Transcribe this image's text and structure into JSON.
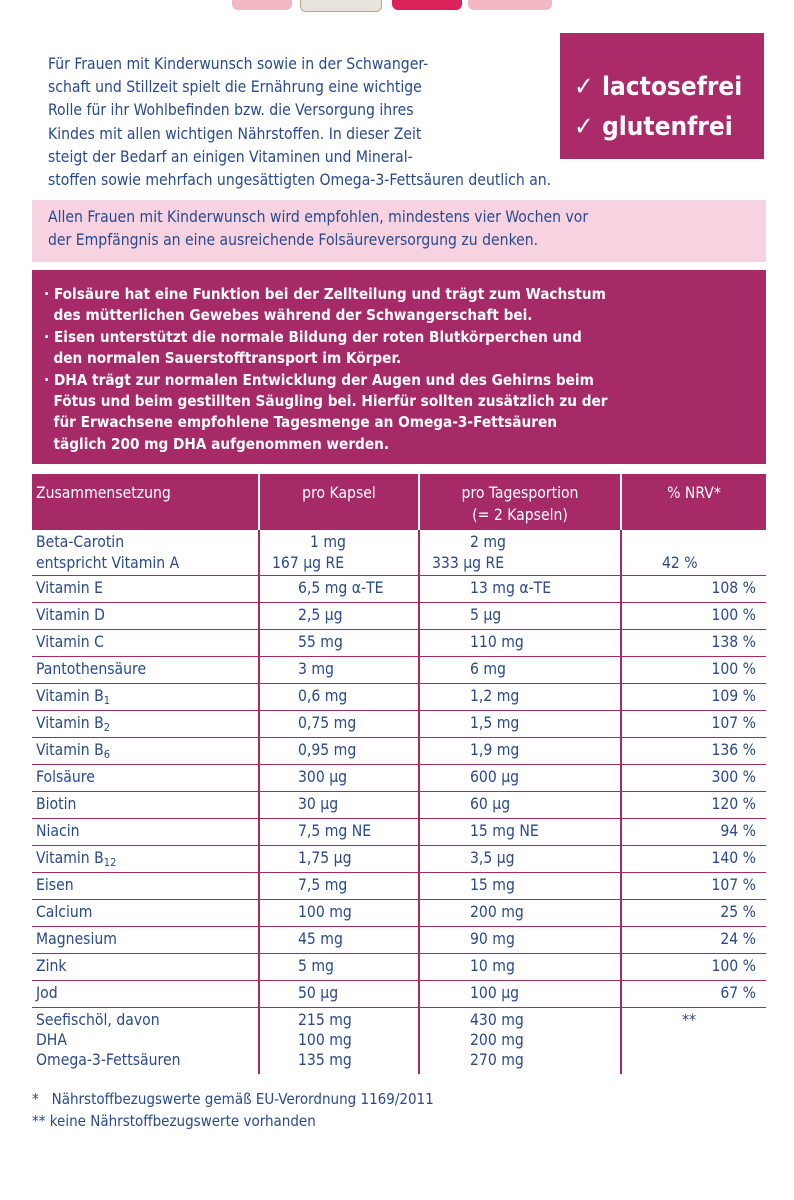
{
  "intro": [
    "Für Frauen mit Kinderwunsch sowie in der Schwanger-",
    "schaft und Stillzeit spielt die Ernährung eine wichtige",
    "Rolle für ihr Wohlbefinden bzw. die Versorgung ihres",
    "Kindes mit allen wichtigen Nährstoffen. In dieser Zeit",
    "steigt der Bedarf an einigen Vitaminen und Mineral-",
    "stoffen sowie mehrfach ungesättigten Omega-3-Fettsäuren deutlich an."
  ],
  "badge": {
    "check": "✓",
    "line1": "lactosefrei",
    "line2": "glutenfrei",
    "color": "#ab2a6a"
  },
  "note": [
    "Allen Frauen mit Kinderwunsch wird empfohlen, mindestens vier Wochen vor",
    "der Empfängnis an eine ausreichende Folsäureversorgung zu denken."
  ],
  "info": [
    "· Folsäure hat eine Funktion bei der Zellteilung und trägt zum Wachstum",
    "  des mütterlichen Gewebes während der Schwangerschaft bei.",
    "· Eisen unterstützt die normale Bildung der roten Blutkörperchen und",
    "  den normalen Sauerstofftransport im Körper.",
    "· DHA trägt zur normalen Entwicklung der Augen und des Gehirns beim",
    "  Fötus und beim gestillten Säugling bei. Hierfür sollten zusätzlich zu der",
    "  für Erwachsene empfohlene Tagesmenge an Omega-3-Fettsäuren",
    "  täglich 200 mg DHA aufgenommen werden."
  ],
  "table": {
    "headers": {
      "c1": "Zusammensetzung",
      "c2": "pro Kapsel",
      "c3a": "pro Tagesportion",
      "c3b": "(= 2 Kapseln)",
      "c4": "% NRV*"
    },
    "beta": {
      "n1": "Beta-Carotin",
      "n2": "entspricht Vitamin A",
      "k1": "1 mg",
      "k2": "167  µg RE",
      "t1": "2 mg",
      "t2": "333  µg RE",
      "nrv": "42 %"
    },
    "rows": [
      {
        "name": "Vitamin E",
        "sub": "",
        "kapsel": "6,5 mg α-TE",
        "tag": "13 mg α-TE",
        "nrv": "108 %"
      },
      {
        "name": "Vitamin D",
        "sub": "",
        "kapsel": "2,5  µg",
        "tag": "5  µg",
        "nrv": "100 %"
      },
      {
        "name": "Vitamin C",
        "sub": "",
        "kapsel": "55 mg",
        "tag": "110 mg",
        "nrv": "138 %"
      },
      {
        "name": "Pantothensäure",
        "sub": "",
        "kapsel": "3 mg",
        "tag": "6 mg",
        "nrv": "100 %"
      },
      {
        "name": "Vitamin B",
        "sub": "1",
        "kapsel": "0,6 mg",
        "tag": "1,2 mg",
        "nrv": "109 %"
      },
      {
        "name": "Vitamin B",
        "sub": "2",
        "kapsel": "0,75 mg",
        "tag": "1,5 mg",
        "nrv": "107 %"
      },
      {
        "name": "Vitamin B",
        "sub": "6",
        "kapsel": "0,95 mg",
        "tag": "1,9 mg",
        "nrv": "136 %"
      },
      {
        "name": "Folsäure",
        "sub": "",
        "kapsel": "300  µg",
        "tag": "600  µg",
        "nrv": "300 %"
      },
      {
        "name": "Biotin",
        "sub": "",
        "kapsel": "30  µg",
        "tag": "60  µg",
        "nrv": "120 %"
      },
      {
        "name": "Niacin",
        "sub": "",
        "kapsel": "7,5 mg NE",
        "tag": "15 mg NE",
        "nrv": "94 %"
      },
      {
        "name": "Vitamin B",
        "sub": "12",
        "kapsel": "1,75  µg",
        "tag": "3,5  µg",
        "nrv": "140 %"
      },
      {
        "name": "Eisen",
        "sub": "",
        "kapsel": "7,5 mg",
        "tag": "15 mg",
        "nrv": "107 %"
      },
      {
        "name": "Calcium",
        "sub": "",
        "kapsel": "100 mg",
        "tag": "200 mg",
        "nrv": "25 %"
      },
      {
        "name": "Magnesium",
        "sub": "",
        "kapsel": "45 mg",
        "tag": "90 mg",
        "nrv": "24 %"
      },
      {
        "name": "Zink",
        "sub": "",
        "kapsel": "5 mg",
        "tag": "10 mg",
        "nrv": "100 %"
      },
      {
        "name": "Jod",
        "sub": "",
        "kapsel": "50  µg",
        "tag": "100  µg",
        "nrv": "67 %"
      }
    ],
    "fish": {
      "n1": "Seefischöl, davon",
      "n2": "DHA",
      "n3": "Omega-3-Fettsäuren",
      "k1": "215 mg",
      "k2": "100 mg",
      "k3": "135 mg",
      "t1": "430 mg",
      "t2": "200 mg",
      "t3": "270 mg",
      "nrv": "**"
    }
  },
  "footnotes": [
    "*   Nährstoffbezugswerte gemäß EU-Verordnung 1169/2011",
    "** keine Nährstoffbezugswerte vorhanden"
  ],
  "colors": {
    "accent": "#a72a68",
    "note_bg": "#f7d3e2",
    "text": "#2a4a8a"
  }
}
